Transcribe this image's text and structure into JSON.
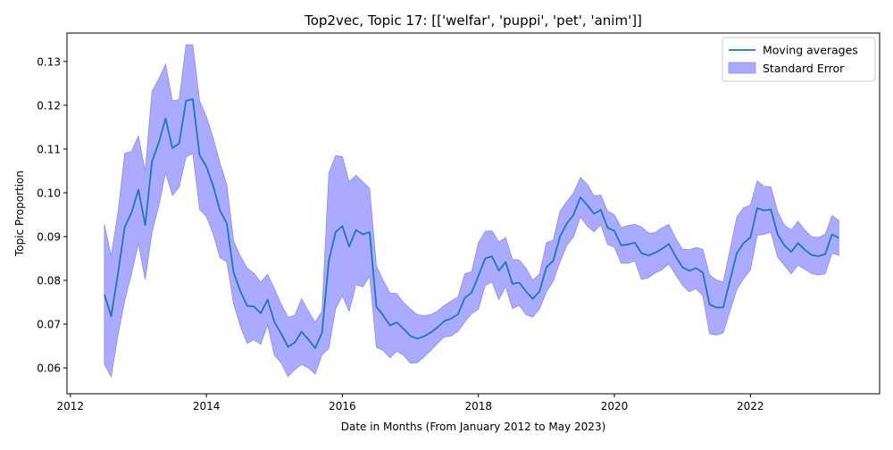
{
  "chart_data": {
    "type": "line",
    "title": "Top2vec, Topic 17: [['welfar', 'puppi', 'pet', 'anim']]",
    "xlabel": "Date in Months (From January 2012 to May 2023)",
    "ylabel": "Topic Proportion",
    "xlim": [
      2011.95,
      2023.9
    ],
    "ylim": [
      0.0541,
      0.1365
    ],
    "xticks": [
      "2012",
      "2014",
      "2016",
      "2018",
      "2020",
      "2022"
    ],
    "yticks": [
      "0.06",
      "0.07",
      "0.08",
      "0.09",
      "0.10",
      "0.11",
      "0.12",
      "0.13"
    ],
    "grid": false,
    "legend": {
      "position": "top-right",
      "entries": [
        "Moving averages",
        "Standard Error"
      ]
    },
    "colors": {
      "line": "#1f77b4",
      "band_fill": "#aaaaff",
      "band_edge": "#8c8cf0"
    },
    "x": [
      2012.5,
      2012.6,
      2012.7,
      2012.8,
      2012.9,
      2013.0,
      2013.1,
      2013.2,
      2013.3,
      2013.4,
      2013.5,
      2013.6,
      2013.7,
      2013.8,
      2013.9,
      2014.0,
      2014.1,
      2014.2,
      2014.3,
      2014.4,
      2014.5,
      2014.6,
      2014.7,
      2014.8,
      2014.9,
      2015.0,
      2015.1,
      2015.2,
      2015.3,
      2015.4,
      2015.5,
      2015.6,
      2015.7,
      2015.8,
      2015.9,
      2016.0,
      2016.1,
      2016.2,
      2016.3,
      2016.4,
      2016.5,
      2016.6,
      2016.7,
      2016.8,
      2016.9,
      2017.0,
      2017.1,
      2017.2,
      2017.3,
      2017.4,
      2017.5,
      2017.6,
      2017.7,
      2017.8,
      2017.9,
      2018.0,
      2018.1,
      2018.2,
      2018.3,
      2018.4,
      2018.5,
      2018.6,
      2018.7,
      2018.8,
      2018.9,
      2019.0,
      2019.1,
      2019.2,
      2019.3,
      2019.4,
      2019.5,
      2019.6,
      2019.7,
      2019.8,
      2019.9,
      2020.0,
      2020.1,
      2020.2,
      2020.3,
      2020.4,
      2020.5,
      2020.6,
      2020.7,
      2020.8,
      2020.9,
      2021.0,
      2021.1,
      2021.2,
      2021.3,
      2021.4,
      2021.5,
      2021.6,
      2021.7,
      2021.8,
      2021.9,
      2022.0,
      2022.1,
      2022.2,
      2022.3,
      2022.4,
      2022.5,
      2022.6,
      2022.7,
      2022.8,
      2022.9,
      2023.0,
      2023.1,
      2023.2,
      2023.3
    ],
    "series": [
      {
        "name": "Moving averages",
        "values": [
          0.0768,
          0.0718,
          0.0815,
          0.0922,
          0.0955,
          0.1007,
          0.0926,
          0.1071,
          0.1115,
          0.117,
          0.1102,
          0.1113,
          0.121,
          0.1214,
          0.1086,
          0.106,
          0.1016,
          0.096,
          0.093,
          0.0818,
          0.0775,
          0.0742,
          0.074,
          0.0725,
          0.0756,
          0.0705,
          0.0678,
          0.0648,
          0.0658,
          0.0683,
          0.0665,
          0.0645,
          0.068,
          0.0845,
          0.091,
          0.0924,
          0.0877,
          0.0915,
          0.0905,
          0.091,
          0.074,
          0.072,
          0.0697,
          0.0704,
          0.0689,
          0.0673,
          0.0667,
          0.0672,
          0.0681,
          0.0693,
          0.0707,
          0.0713,
          0.0723,
          0.076,
          0.0772,
          0.081,
          0.085,
          0.0855,
          0.0822,
          0.0842,
          0.0792,
          0.0795,
          0.0775,
          0.0758,
          0.0775,
          0.083,
          0.0845,
          0.09,
          0.093,
          0.095,
          0.099,
          0.0972,
          0.0952,
          0.0961,
          0.092,
          0.0913,
          0.088,
          0.0882,
          0.0886,
          0.0862,
          0.0857,
          0.0863,
          0.0872,
          0.0883,
          0.0855,
          0.083,
          0.0822,
          0.0828,
          0.0818,
          0.0745,
          0.0738,
          0.0738,
          0.08,
          0.0862,
          0.0885,
          0.0898,
          0.0965,
          0.096,
          0.0962,
          0.0905,
          0.088,
          0.0865,
          0.0885,
          0.087,
          0.0858,
          0.0855,
          0.086,
          0.0905,
          0.0897
        ]
      }
    ],
    "band_upper": [
      0.0928,
      0.0856,
      0.0955,
      0.109,
      0.1095,
      0.113,
      0.105,
      0.1232,
      0.126,
      0.1294,
      0.121,
      0.1213,
      0.1338,
      0.1338,
      0.121,
      0.1174,
      0.1126,
      0.1068,
      0.1018,
      0.089,
      0.0855,
      0.0828,
      0.0816,
      0.0796,
      0.0814,
      0.0781,
      0.0745,
      0.0716,
      0.072,
      0.0758,
      0.073,
      0.0704,
      0.073,
      0.1045,
      0.1085,
      0.1083,
      0.1025,
      0.104,
      0.1025,
      0.101,
      0.0833,
      0.08,
      0.0771,
      0.077,
      0.0749,
      0.0735,
      0.0722,
      0.0719,
      0.0722,
      0.073,
      0.0743,
      0.0753,
      0.0762,
      0.0815,
      0.082,
      0.0886,
      0.0912,
      0.0913,
      0.0888,
      0.0898,
      0.0848,
      0.0847,
      0.0828,
      0.08,
      0.0815,
      0.0886,
      0.0892,
      0.0958,
      0.098,
      0.1,
      0.1035,
      0.102,
      0.0993,
      0.0995,
      0.0958,
      0.095,
      0.0921,
      0.0925,
      0.0928,
      0.0922,
      0.0908,
      0.0909,
      0.092,
      0.0928,
      0.0897,
      0.0871,
      0.087,
      0.0875,
      0.0871,
      0.0812,
      0.0801,
      0.0796,
      0.087,
      0.0945,
      0.0966,
      0.0972,
      0.1027,
      0.1015,
      0.1014,
      0.0957,
      0.0926,
      0.0915,
      0.0935,
      0.0915,
      0.09,
      0.0898,
      0.0905,
      0.0948,
      0.0937
    ]
  }
}
